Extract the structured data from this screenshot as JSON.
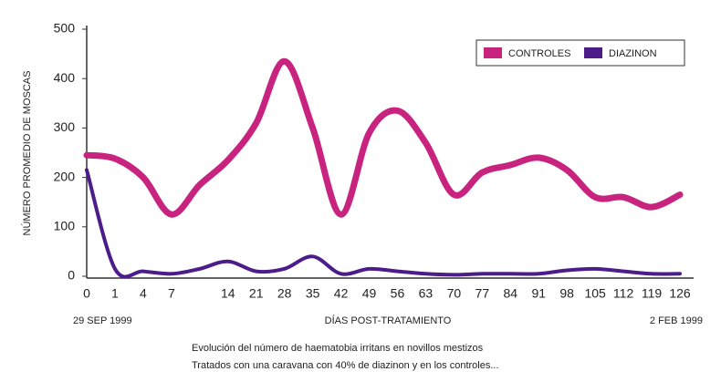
{
  "chart_data": {
    "type": "line",
    "y_label": "NÚMERO PROMEDIO DE MOSCAS",
    "x_label": "DÍAS POST-TRATAMIENTO",
    "x_start_label": "29 SEP 1999",
    "x_end_label": "2 FEB 1999",
    "caption": [
      "Evolución del número de haematobia irritans en novillos mestizos",
      "Tratados con una caravana con 40% de diazinon y en los controles..."
    ],
    "categories": [
      0,
      1,
      4,
      7,
      null,
      14,
      21,
      28,
      35,
      42,
      49,
      56,
      63,
      70,
      77,
      84,
      91,
      98,
      105,
      112,
      119,
      126
    ],
    "series": [
      {
        "name": "CONTROLES",
        "color": "#c8237f",
        "values": [
          245,
          238,
          200,
          125,
          185,
          235,
          310,
          435,
          300,
          125,
          290,
          335,
          270,
          165,
          210,
          225,
          240,
          215,
          160,
          160,
          140,
          165
        ]
      },
      {
        "name": "DIAZINON",
        "color": "#4b1c8a",
        "values": [
          215,
          15,
          10,
          5,
          15,
          30,
          10,
          15,
          40,
          5,
          15,
          10,
          5,
          3,
          5,
          5,
          5,
          12,
          15,
          10,
          5,
          5
        ]
      }
    ],
    "ylim": [
      0,
      500
    ],
    "yticks": [
      0,
      100,
      200,
      300,
      400,
      500
    ],
    "legend": "top-right"
  }
}
